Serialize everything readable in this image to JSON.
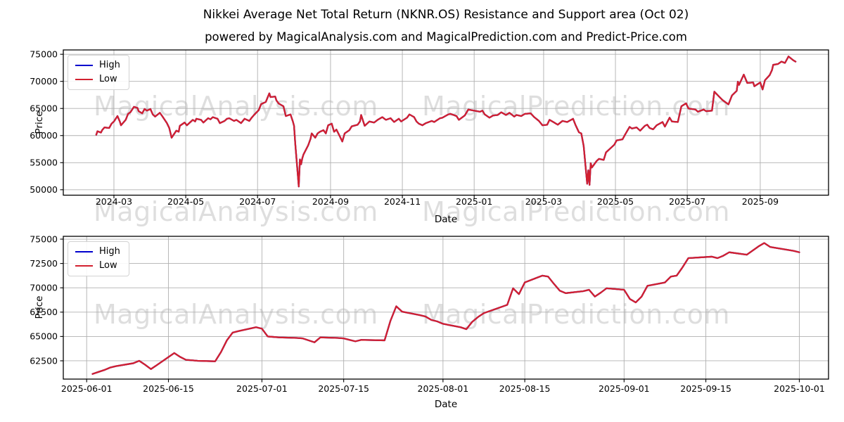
{
  "title": "Nikkei Average Net Total Return (NKNR.OS) Resistance and Support area (Oct 02)",
  "subtitle": "powered by MagicalAnalysis.com and MagicalPrediction.com and Predict-Price.com",
  "watermark": {
    "left": "MagicalAnalysis.com",
    "right": "MagicalPrediction.com"
  },
  "colors": {
    "high": "#0000cd",
    "low": "#d2202f",
    "grid": "#b0b0b0",
    "spine": "#000000",
    "text": "#000000",
    "watermark": "rgba(0,0,0,0.13)"
  },
  "chart_data": [
    {
      "type": "line",
      "name": "full-history-panel",
      "ylabel": "Price",
      "xlabel": "Date",
      "legend_position": "upper left",
      "grid": true,
      "ylim": [
        49000,
        75800
      ],
      "yticks": [
        50000,
        55000,
        60000,
        65000,
        70000,
        75000
      ],
      "xlim": [
        "2024-01-18",
        "2025-10-29"
      ],
      "xticks": [
        {
          "date": "2024-03-01",
          "label": "2024-03"
        },
        {
          "date": "2024-05-01",
          "label": "2024-05"
        },
        {
          "date": "2024-07-01",
          "label": "2024-07"
        },
        {
          "date": "2024-09-01",
          "label": "2024-09"
        },
        {
          "date": "2024-11-01",
          "label": "2024-11"
        },
        {
          "date": "2025-01-01",
          "label": "2025-01"
        },
        {
          "date": "2025-03-01",
          "label": "2025-03"
        },
        {
          "date": "2025-05-01",
          "label": "2025-05"
        },
        {
          "date": "2025-07-01",
          "label": "2025-07"
        },
        {
          "date": "2025-09-01",
          "label": "2025-09"
        }
      ],
      "dates": [
        "2024-02-15",
        "2024-02-16",
        "2024-02-19",
        "2024-02-20",
        "2024-02-22",
        "2024-02-26",
        "2024-02-28",
        "2024-03-01",
        "2024-03-04",
        "2024-03-06",
        "2024-03-07",
        "2024-03-11",
        "2024-03-13",
        "2024-03-15",
        "2024-03-18",
        "2024-03-21",
        "2024-03-22",
        "2024-03-25",
        "2024-03-27",
        "2024-03-29",
        "2024-04-01",
        "2024-04-03",
        "2024-04-05",
        "2024-04-09",
        "2024-04-11",
        "2024-04-15",
        "2024-04-17",
        "2024-04-19",
        "2024-04-23",
        "2024-04-25",
        "2024-04-26",
        "2024-04-30",
        "2024-05-02",
        "2024-05-07",
        "2024-05-09",
        "2024-05-10",
        "2024-05-14",
        "2024-05-16",
        "2024-05-20",
        "2024-05-22",
        "2024-05-24",
        "2024-05-28",
        "2024-05-30",
        "2024-06-03",
        "2024-06-05",
        "2024-06-07",
        "2024-06-11",
        "2024-06-13",
        "2024-06-17",
        "2024-06-20",
        "2024-06-24",
        "2024-06-26",
        "2024-06-28",
        "2024-07-02",
        "2024-07-04",
        "2024-07-08",
        "2024-07-11",
        "2024-07-12",
        "2024-07-16",
        "2024-07-17",
        "2024-07-19",
        "2024-07-23",
        "2024-07-25",
        "2024-07-29",
        "2024-07-31",
        "2024-08-01",
        "2024-08-02",
        "2024-08-05",
        "2024-08-06",
        "2024-08-07",
        "2024-08-08",
        "2024-08-09",
        "2024-08-13",
        "2024-08-15",
        "2024-08-16",
        "2024-08-19",
        "2024-08-21",
        "2024-08-23",
        "2024-08-26",
        "2024-08-28",
        "2024-08-30",
        "2024-09-02",
        "2024-09-04",
        "2024-09-06",
        "2024-09-09",
        "2024-09-11",
        "2024-09-13",
        "2024-09-17",
        "2024-09-19",
        "2024-09-24",
        "2024-09-26",
        "2024-09-27",
        "2024-09-30",
        "2024-10-02",
        "2024-10-04",
        "2024-10-08",
        "2024-10-11",
        "2024-10-15",
        "2024-10-18",
        "2024-10-22",
        "2024-10-25",
        "2024-10-29",
        "2024-10-31",
        "2024-11-05",
        "2024-11-07",
        "2024-11-11",
        "2024-11-13",
        "2024-11-15",
        "2024-11-18",
        "2024-11-21",
        "2024-11-26",
        "2024-11-28",
        "2024-12-03",
        "2024-12-05",
        "2024-12-10",
        "2024-12-12",
        "2024-12-17",
        "2024-12-19",
        "2024-12-24",
        "2024-12-27",
        "2025-01-06",
        "2025-01-08",
        "2025-01-10",
        "2025-01-14",
        "2025-01-17",
        "2025-01-21",
        "2025-01-24",
        "2025-01-28",
        "2025-01-31",
        "2025-02-04",
        "2025-02-06",
        "2025-02-10",
        "2025-02-13",
        "2025-02-18",
        "2025-02-21",
        "2025-02-25",
        "2025-02-28",
        "2025-03-04",
        "2025-03-06",
        "2025-03-10",
        "2025-03-13",
        "2025-03-17",
        "2025-03-21",
        "2025-03-26",
        "2025-03-28",
        "2025-03-31",
        "2025-04-02",
        "2025-04-04",
        "2025-04-07",
        "2025-04-08",
        "2025-04-09",
        "2025-04-10",
        "2025-04-11",
        "2025-04-15",
        "2025-04-17",
        "2025-04-21",
        "2025-04-23",
        "2025-04-25",
        "2025-04-30",
        "2025-05-02",
        "2025-05-07",
        "2025-05-09",
        "2025-05-13",
        "2025-05-15",
        "2025-05-19",
        "2025-05-22",
        "2025-05-26",
        "2025-05-28",
        "2025-05-30",
        "2025-06-02",
        "2025-06-05",
        "2025-06-10",
        "2025-06-12",
        "2025-06-16",
        "2025-06-18",
        "2025-06-23",
        "2025-06-26",
        "2025-06-30",
        "2025-07-02",
        "2025-07-08",
        "2025-07-10",
        "2025-07-15",
        "2025-07-17",
        "2025-07-22",
        "2025-07-24",
        "2025-07-28",
        "2025-07-31",
        "2025-08-05",
        "2025-08-08",
        "2025-08-12",
        "2025-08-13",
        "2025-08-14",
        "2025-08-18",
        "2025-08-21",
        "2025-08-26",
        "2025-08-27",
        "2025-09-01",
        "2025-09-03",
        "2025-09-05",
        "2025-09-09",
        "2025-09-11",
        "2025-09-12",
        "2025-09-16",
        "2025-09-19",
        "2025-09-22",
        "2025-09-25",
        "2025-09-29",
        "2025-10-01"
      ],
      "series": [
        {
          "name": "High",
          "color_key": "high",
          "values_same_as": "Low",
          "note": "High line coincides with Low line at this resolution (blue hidden under red)"
        },
        {
          "name": "Low",
          "color_key": "low",
          "values": [
            60150,
            60800,
            60550,
            61000,
            61500,
            61400,
            62200,
            62600,
            63600,
            62600,
            61900,
            62900,
            64000,
            64300,
            65300,
            65100,
            64500,
            64100,
            64900,
            64600,
            64900,
            63900,
            63500,
            64200,
            63600,
            62300,
            61400,
            59600,
            60900,
            60700,
            61800,
            62400,
            61900,
            62900,
            62600,
            63100,
            62900,
            62400,
            63200,
            63000,
            63400,
            63100,
            62300,
            62700,
            63100,
            63200,
            62700,
            62900,
            62300,
            63100,
            62700,
            63300,
            63800,
            64700,
            65800,
            66200,
            67800,
            67100,
            67200,
            66500,
            65900,
            65400,
            63600,
            63900,
            62600,
            61800,
            58600,
            50600,
            55600,
            54700,
            55800,
            56500,
            58200,
            59400,
            60400,
            59600,
            60400,
            60700,
            61000,
            60400,
            61900,
            62200,
            60700,
            61100,
            59800,
            58900,
            60400,
            61000,
            61700,
            62000,
            62600,
            63800,
            61800,
            62200,
            62600,
            62400,
            62900,
            63400,
            62900,
            63200,
            62500,
            63100,
            62600,
            63300,
            63900,
            63400,
            62600,
            62200,
            61900,
            62300,
            62700,
            62500,
            63200,
            63300,
            63900,
            64000,
            63600,
            62900,
            63700,
            64800,
            64400,
            64600,
            63900,
            63300,
            63700,
            63800,
            64300,
            63800,
            64200,
            63500,
            63800,
            63600,
            64000,
            64100,
            63400,
            62700,
            61900,
            62000,
            62900,
            62400,
            62000,
            62700,
            62500,
            63100,
            62000,
            60600,
            60400,
            58100,
            51100,
            53600,
            50900,
            54900,
            54100,
            55300,
            55700,
            55500,
            56900,
            57300,
            58300,
            59100,
            59300,
            60100,
            61600,
            61300,
            61500,
            60900,
            61800,
            62000,
            61400,
            61150,
            61900,
            62500,
            61650,
            63300,
            62600,
            62500,
            65400,
            65950,
            65000,
            64800,
            64400,
            64800,
            64500,
            64600,
            68100,
            67200,
            66550,
            65750,
            67400,
            68250,
            69950,
            69350,
            71250,
            69700,
            69800,
            69100,
            69800,
            68500,
            70200,
            71150,
            72100,
            73050,
            73200,
            73650,
            73400,
            74600,
            73900,
            73650
          ]
        }
      ]
    },
    {
      "type": "line",
      "name": "recent-four-months-panel",
      "ylabel": "Price",
      "xlabel": "Date",
      "legend_position": "upper left",
      "grid": true,
      "ylim": [
        60620,
        75290
      ],
      "yticks": [
        62500,
        65000,
        67500,
        70000,
        72500,
        75000
      ],
      "xlim": [
        "2025-05-28",
        "2025-10-06"
      ],
      "xticks": [
        {
          "date": "2025-06-01",
          "label": "2025-06-01"
        },
        {
          "date": "2025-06-15",
          "label": "2025-06-15"
        },
        {
          "date": "2025-07-01",
          "label": "2025-07-01"
        },
        {
          "date": "2025-07-15",
          "label": "2025-07-15"
        },
        {
          "date": "2025-08-01",
          "label": "2025-08-01"
        },
        {
          "date": "2025-08-15",
          "label": "2025-08-15"
        },
        {
          "date": "2025-09-01",
          "label": "2025-09-01"
        },
        {
          "date": "2025-09-15",
          "label": "2025-09-15"
        },
        {
          "date": "2025-10-01",
          "label": "2025-10-01"
        }
      ],
      "dates": [
        "2025-06-02",
        "2025-06-03",
        "2025-06-04",
        "2025-06-05",
        "2025-06-06",
        "2025-06-09",
        "2025-06-10",
        "2025-06-11",
        "2025-06-12",
        "2025-06-13",
        "2025-06-16",
        "2025-06-17",
        "2025-06-18",
        "2025-06-19",
        "2025-06-20",
        "2025-06-23",
        "2025-06-24",
        "2025-06-25",
        "2025-06-26",
        "2025-06-27",
        "2025-06-30",
        "2025-07-01",
        "2025-07-02",
        "2025-07-03",
        "2025-07-04",
        "2025-07-07",
        "2025-07-08",
        "2025-07-09",
        "2025-07-10",
        "2025-07-11",
        "2025-07-14",
        "2025-07-15",
        "2025-07-16",
        "2025-07-17",
        "2025-07-18",
        "2025-07-22",
        "2025-07-23",
        "2025-07-24",
        "2025-07-25",
        "2025-07-28",
        "2025-07-29",
        "2025-07-30",
        "2025-07-31",
        "2025-08-01",
        "2025-08-04",
        "2025-08-05",
        "2025-08-06",
        "2025-08-07",
        "2025-08-08",
        "2025-08-12",
        "2025-08-13",
        "2025-08-14",
        "2025-08-15",
        "2025-08-18",
        "2025-08-19",
        "2025-08-20",
        "2025-08-21",
        "2025-08-22",
        "2025-08-25",
        "2025-08-26",
        "2025-08-27",
        "2025-08-28",
        "2025-08-29",
        "2025-09-01",
        "2025-09-02",
        "2025-09-03",
        "2025-09-04",
        "2025-09-05",
        "2025-09-08",
        "2025-09-09",
        "2025-09-10",
        "2025-09-11",
        "2025-09-12",
        "2025-09-16",
        "2025-09-17",
        "2025-09-18",
        "2025-09-19",
        "2025-09-22",
        "2025-09-24",
        "2025-09-25",
        "2025-09-26",
        "2025-09-29",
        "2025-09-30",
        "2025-10-01"
      ],
      "series": [
        {
          "name": "High",
          "color_key": "high",
          "values_same_as": "Low",
          "note": "High line coincides with Low line at this resolution (blue hidden under red)"
        },
        {
          "name": "Low",
          "color_key": "low",
          "values": [
            61150,
            61350,
            61550,
            61800,
            61950,
            62250,
            62500,
            62100,
            61650,
            62050,
            63300,
            62900,
            62600,
            62550,
            62500,
            62450,
            63400,
            64600,
            65400,
            65550,
            65950,
            65800,
            65000,
            64950,
            64900,
            64850,
            64800,
            64600,
            64400,
            64900,
            64850,
            64800,
            64650,
            64500,
            64650,
            64600,
            66600,
            68100,
            67550,
            67200,
            67050,
            66700,
            66550,
            66300,
            65950,
            65750,
            66500,
            67000,
            67400,
            68250,
            69950,
            69350,
            70550,
            71250,
            71150,
            70400,
            69700,
            69450,
            69650,
            69800,
            69100,
            69500,
            69950,
            69800,
            68850,
            68500,
            69100,
            70200,
            70550,
            71150,
            71250,
            72100,
            73050,
            73200,
            73050,
            73300,
            73650,
            73400,
            74250,
            74600,
            74200,
            73900,
            73800,
            73650
          ]
        }
      ]
    }
  ]
}
